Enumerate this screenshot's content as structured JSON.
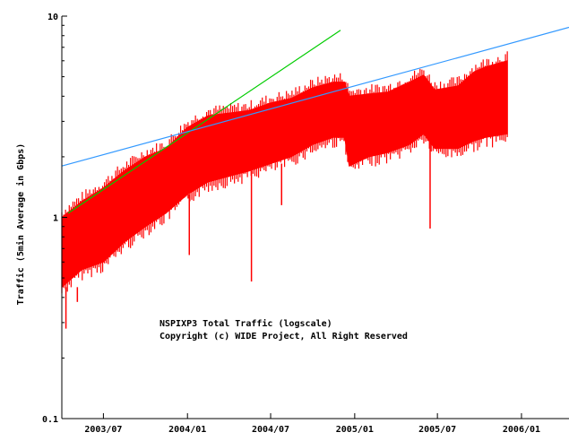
{
  "chart_data": {
    "type": "line",
    "title": "",
    "xlabel": "",
    "ylabel": "Traffic (5min Average in Gbps)",
    "y_scale": "log",
    "ylim": [
      0.1,
      10
    ],
    "xlim": [
      "2003-04-01",
      "2006-04-15"
    ],
    "y_ticks": [
      {
        "value": 0.1,
        "label": "0.1"
      },
      {
        "value": 1,
        "label": "1"
      },
      {
        "value": 10,
        "label": "10"
      }
    ],
    "x_ticks": [
      {
        "date": "2003-07-01",
        "label": "2003/07"
      },
      {
        "date": "2004-01-01",
        "label": "2004/01"
      },
      {
        "date": "2004-07-01",
        "label": "2004/07"
      },
      {
        "date": "2005-01-01",
        "label": "2005/01"
      },
      {
        "date": "2005-07-01",
        "label": "2005/07"
      },
      {
        "date": "2006-01-01",
        "label": "2006/01"
      }
    ],
    "grid": false,
    "annotations": [
      "NSPIXP3 Total Traffic (logscale)",
      "Copyright (c) WIDE Project, All Right Reserved"
    ],
    "series": [
      {
        "name": "",
        "color": "#ff0000",
        "style": "band",
        "points": [
          {
            "date": "2003-04-01",
            "low": 0.45,
            "high": 1.0
          },
          {
            "date": "2003-05-15",
            "low": 0.55,
            "high": 1.2
          },
          {
            "date": "2003-07-01",
            "low": 0.6,
            "high": 1.4
          },
          {
            "date": "2003-08-15",
            "low": 0.75,
            "high": 1.7
          },
          {
            "date": "2003-10-01",
            "low": 0.9,
            "high": 2.0
          },
          {
            "date": "2003-11-15",
            "low": 1.05,
            "high": 2.2
          },
          {
            "date": "2004-01-01",
            "low": 1.3,
            "high": 2.8
          },
          {
            "date": "2004-02-15",
            "low": 1.5,
            "high": 3.2
          },
          {
            "date": "2004-04-01",
            "low": 1.6,
            "high": 3.3
          },
          {
            "date": "2004-05-15",
            "low": 1.7,
            "high": 3.4
          },
          {
            "date": "2004-07-01",
            "low": 1.85,
            "high": 3.7
          },
          {
            "date": "2004-08-15",
            "low": 2.0,
            "high": 3.9
          },
          {
            "date": "2004-10-01",
            "low": 2.3,
            "high": 4.4
          },
          {
            "date": "2004-11-15",
            "low": 2.5,
            "high": 4.7
          },
          {
            "date": "2004-12-10",
            "low": 2.5,
            "high": 4.7
          },
          {
            "date": "2004-12-20",
            "low": 1.8,
            "high": 4.0
          },
          {
            "date": "2005-02-01",
            "low": 2.0,
            "high": 4.1
          },
          {
            "date": "2005-03-15",
            "low": 2.1,
            "high": 4.2
          },
          {
            "date": "2005-05-01",
            "low": 2.3,
            "high": 4.7
          },
          {
            "date": "2005-06-01",
            "low": 2.6,
            "high": 5.1
          },
          {
            "date": "2005-06-25",
            "low": 2.2,
            "high": 4.3
          },
          {
            "date": "2005-08-15",
            "low": 2.2,
            "high": 4.5
          },
          {
            "date": "2005-09-20",
            "low": 2.4,
            "high": 5.3
          },
          {
            "date": "2005-10-15",
            "low": 2.5,
            "high": 5.6
          },
          {
            "date": "2005-12-01",
            "low": 2.6,
            "high": 6.0
          }
        ],
        "dips": [
          {
            "date": "2003-04-10",
            "value": 0.28
          },
          {
            "date": "2003-05-05",
            "value": 0.38
          },
          {
            "date": "2004-01-05",
            "value": 0.65
          },
          {
            "date": "2004-05-20",
            "value": 0.48
          },
          {
            "date": "2004-07-25",
            "value": 1.15
          },
          {
            "date": "2005-06-15",
            "value": 0.88
          }
        ]
      },
      {
        "name": "",
        "color": "#00cc00",
        "style": "line",
        "points": [
          {
            "date": "2003-04-15",
            "value": 1.05
          },
          {
            "date": "2004-12-01",
            "value": 8.5
          }
        ]
      },
      {
        "name": "",
        "color": "#3399ff",
        "style": "line",
        "points": [
          {
            "date": "2003-04-01",
            "value": 1.8
          },
          {
            "date": "2006-04-15",
            "value": 8.8
          }
        ]
      }
    ]
  }
}
